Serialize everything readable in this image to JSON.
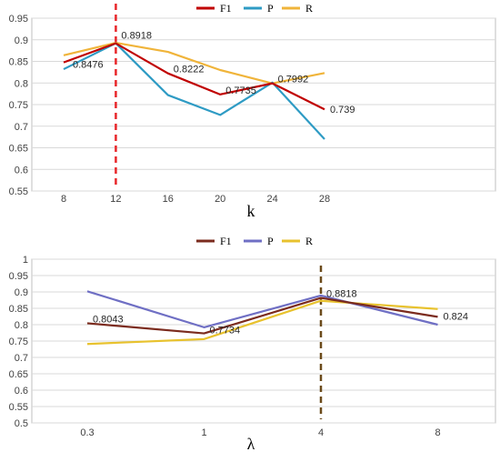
{
  "chart_data": [
    {
      "type": "line",
      "xlabel": "k",
      "ylabel": "",
      "categories": [
        "8",
        "12",
        "16",
        "20",
        "24",
        "28"
      ],
      "ylim": [
        0.55,
        0.95
      ],
      "yticks": [
        "0.55",
        "0.6",
        "0.65",
        "0.7",
        "0.75",
        "0.8",
        "0.85",
        "0.9",
        "0.95"
      ],
      "legend_position": "top-center",
      "grid": true,
      "series": [
        {
          "name": "F1",
          "color": "#c00000",
          "values": [
            0.8476,
            0.8918,
            0.8222,
            0.7735,
            0.7992,
            0.739
          ]
        },
        {
          "name": "P",
          "color": "#2e9bc4",
          "values": [
            0.832,
            0.892,
            0.772,
            0.726,
            0.801,
            0.67
          ]
        },
        {
          "name": "R",
          "color": "#f0b43a",
          "values": [
            0.864,
            0.893,
            0.872,
            0.83,
            0.799,
            0.823
          ]
        }
      ],
      "data_labels": [
        {
          "series": 0,
          "index": 0,
          "text": "0.8476"
        },
        {
          "series": 0,
          "index": 1,
          "text": "0.8918"
        },
        {
          "series": 0,
          "index": 2,
          "text": "0.8222"
        },
        {
          "series": 0,
          "index": 3,
          "text": "0.7735"
        },
        {
          "series": 0,
          "index": 4,
          "text": "0.7992"
        },
        {
          "series": 0,
          "index": 5,
          "text": "0.739"
        }
      ],
      "highlight_category": "12",
      "highlight_color": "#e8262a"
    },
    {
      "type": "line",
      "xlabel": "λ",
      "ylabel": "",
      "categories": [
        "0.3",
        "1",
        "4",
        "8"
      ],
      "ylim": [
        0.5,
        1.0
      ],
      "yticks": [
        "0.5",
        "0.55",
        "0.6",
        "0.65",
        "0.7",
        "0.75",
        "0.8",
        "0.85",
        "0.9",
        "0.95",
        "1"
      ],
      "legend_position": "top-center",
      "grid": true,
      "series": [
        {
          "name": "F1",
          "color": "#7b2b1e",
          "values": [
            0.8043,
            0.7734,
            0.8818,
            0.824
          ]
        },
        {
          "name": "P",
          "color": "#6f6fc4",
          "values": [
            0.902,
            0.792,
            0.889,
            0.8
          ]
        },
        {
          "name": "R",
          "color": "#e8c22e",
          "values": [
            0.741,
            0.756,
            0.873,
            0.848
          ]
        }
      ],
      "data_labels": [
        {
          "series": 0,
          "index": 0,
          "text": "0.8043"
        },
        {
          "series": 0,
          "index": 1,
          "text": "0.7734"
        },
        {
          "series": 0,
          "index": 2,
          "text": "0.8818"
        },
        {
          "series": 0,
          "index": 3,
          "text": "0.824"
        }
      ],
      "highlight_category": "4",
      "highlight_color": "#6b4a1a"
    }
  ]
}
